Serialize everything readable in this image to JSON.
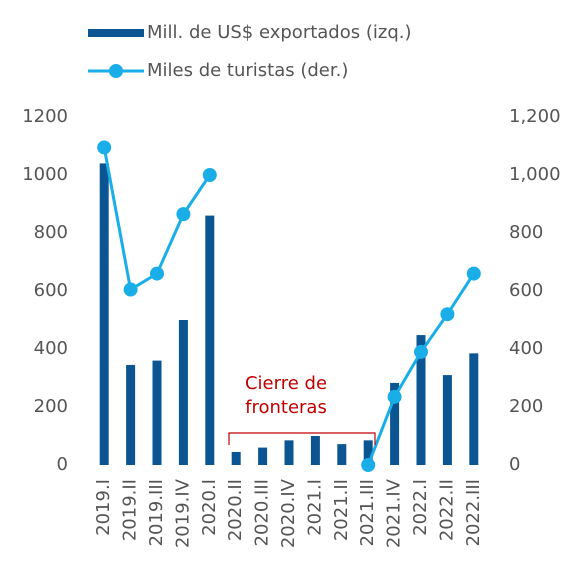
{
  "chart_data": {
    "type": "bar-line",
    "categories": [
      "2019.I",
      "2019.II",
      "2019.III",
      "2019.IV",
      "2020.I",
      "2020.II",
      "2020.III",
      "2020.IV",
      "2021.I",
      "2021.II",
      "2021.III",
      "2021.IV",
      "2022.I",
      "2022.II",
      "2022.III"
    ],
    "series": [
      {
        "name": "Mill. de US$ exportados (izq.)",
        "color": "#0a5592",
        "type": "bar",
        "axis": "y",
        "values": [
          1040,
          345,
          360,
          500,
          860,
          45,
          60,
          85,
          100,
          72,
          85,
          283,
          448,
          310,
          385
        ]
      },
      {
        "name": "Miles de turistas (der.)",
        "color": "#1aaee8",
        "type": "line",
        "axis": "y2",
        "values": [
          1095,
          605,
          660,
          865,
          1000,
          null,
          null,
          null,
          null,
          null,
          0,
          235,
          390,
          520,
          660
        ]
      }
    ],
    "ylim": [
      0,
      1200
    ],
    "yticks": [
      0,
      200,
      400,
      600,
      800,
      1000,
      1200
    ],
    "y2lim": [
      0,
      1200
    ],
    "y2ticks": [
      0,
      200,
      400,
      600,
      800,
      {
        "value": 1000,
        "label": "1,000"
      },
      {
        "value": 1200,
        "label": "1,200"
      }
    ],
    "annotation": {
      "lines": [
        "Cierre de",
        "fronteras"
      ],
      "color": "#c00000"
    },
    "grid": false
  }
}
